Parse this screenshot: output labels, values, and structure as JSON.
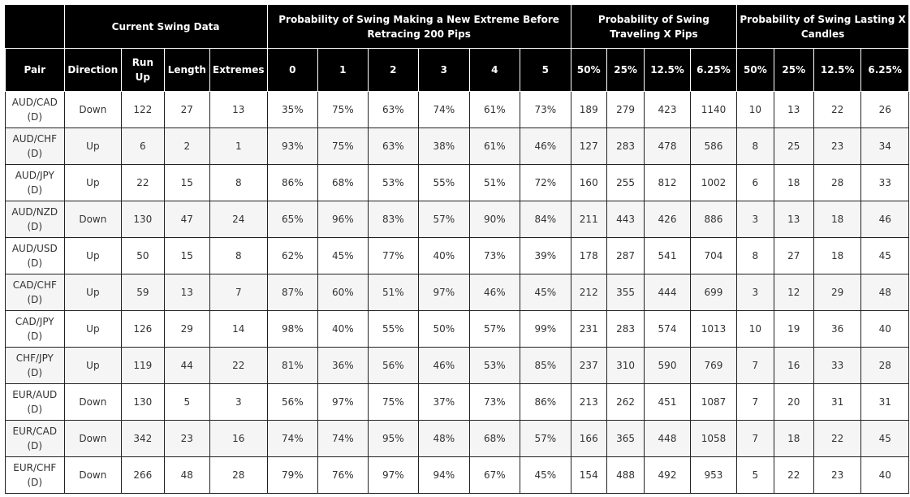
{
  "groups": {
    "current": "Current Swing Data",
    "extreme": "Probability of Swing Making a New Extreme Before Retracing 200 Pips",
    "travel": "Probability of Swing Traveling X Pips",
    "lasting": "Probability of Swing Lasting X Candles"
  },
  "columns": [
    "Pair",
    "Direction",
    "Run Up",
    "Length",
    "Extremes",
    "0",
    "1",
    "2",
    "3",
    "4",
    "5",
    "50%",
    "25%",
    "12.5%",
    "6.25%",
    "50%",
    "25%",
    "12.5%",
    "6.25%"
  ],
  "rows": [
    [
      "AUD/CAD (D)",
      "Down",
      "122",
      "27",
      "13",
      "35%",
      "75%",
      "63%",
      "74%",
      "61%",
      "73%",
      "189",
      "279",
      "423",
      "1140",
      "10",
      "13",
      "22",
      "26"
    ],
    [
      "AUD/CHF (D)",
      "Up",
      "6",
      "2",
      "1",
      "93%",
      "75%",
      "63%",
      "38%",
      "61%",
      "46%",
      "127",
      "283",
      "478",
      "586",
      "8",
      "25",
      "23",
      "34"
    ],
    [
      "AUD/JPY (D)",
      "Up",
      "22",
      "15",
      "8",
      "86%",
      "68%",
      "53%",
      "55%",
      "51%",
      "72%",
      "160",
      "255",
      "812",
      "1002",
      "6",
      "18",
      "28",
      "33"
    ],
    [
      "AUD/NZD (D)",
      "Down",
      "130",
      "47",
      "24",
      "65%",
      "96%",
      "83%",
      "57%",
      "90%",
      "84%",
      "211",
      "443",
      "426",
      "886",
      "3",
      "13",
      "18",
      "46"
    ],
    [
      "AUD/USD (D)",
      "Up",
      "50",
      "15",
      "8",
      "62%",
      "45%",
      "77%",
      "40%",
      "73%",
      "39%",
      "178",
      "287",
      "541",
      "704",
      "8",
      "27",
      "18",
      "45"
    ],
    [
      "CAD/CHF (D)",
      "Up",
      "59",
      "13",
      "7",
      "87%",
      "60%",
      "51%",
      "97%",
      "46%",
      "45%",
      "212",
      "355",
      "444",
      "699",
      "3",
      "12",
      "29",
      "48"
    ],
    [
      "CAD/JPY (D)",
      "Up",
      "126",
      "29",
      "14",
      "98%",
      "40%",
      "55%",
      "50%",
      "57%",
      "99%",
      "231",
      "283",
      "574",
      "1013",
      "10",
      "19",
      "36",
      "40"
    ],
    [
      "CHF/JPY (D)",
      "Up",
      "119",
      "44",
      "22",
      "81%",
      "36%",
      "56%",
      "46%",
      "53%",
      "85%",
      "237",
      "310",
      "590",
      "769",
      "7",
      "16",
      "33",
      "28"
    ],
    [
      "EUR/AUD (D)",
      "Down",
      "130",
      "5",
      "3",
      "56%",
      "97%",
      "75%",
      "37%",
      "73%",
      "86%",
      "213",
      "262",
      "451",
      "1087",
      "7",
      "20",
      "31",
      "31"
    ],
    [
      "EUR/CAD (D)",
      "Down",
      "342",
      "23",
      "16",
      "74%",
      "74%",
      "95%",
      "48%",
      "68%",
      "57%",
      "166",
      "365",
      "448",
      "1058",
      "7",
      "18",
      "22",
      "45"
    ],
    [
      "EUR/CHF (D)",
      "Down",
      "266",
      "48",
      "28",
      "79%",
      "76%",
      "97%",
      "94%",
      "67%",
      "45%",
      "154",
      "488",
      "492",
      "953",
      "5",
      "22",
      "23",
      "40"
    ]
  ]
}
